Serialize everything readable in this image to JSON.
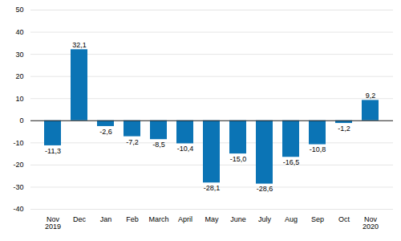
{
  "chart_data": {
    "type": "bar",
    "categories": [
      "Nov\n2019",
      "Dec",
      "Jan",
      "Feb",
      "March",
      "April",
      "May",
      "June",
      "July",
      "Aug",
      "Sep",
      "Oct",
      "Nov\n2020"
    ],
    "values": [
      -11.3,
      32.1,
      -2.6,
      -7.2,
      -8.5,
      -10.4,
      -28.1,
      -15.0,
      -28.6,
      -16.5,
      -10.8,
      -1.2,
      9.2
    ],
    "value_labels": [
      "-11,3",
      "32,1",
      "-2,6",
      "-7,2",
      "-8,5",
      "-10,4",
      "-28,1",
      "-15,0",
      "-28,6",
      "-16,5",
      "-10,8",
      "-1,2",
      "9,2"
    ],
    "data_labels": true,
    "color": "#0b74b5",
    "ylim": [
      -40,
      50
    ],
    "yticks": [
      -40,
      -30,
      -20,
      -10,
      0,
      10,
      20,
      30,
      40,
      50
    ],
    "grid": true
  }
}
